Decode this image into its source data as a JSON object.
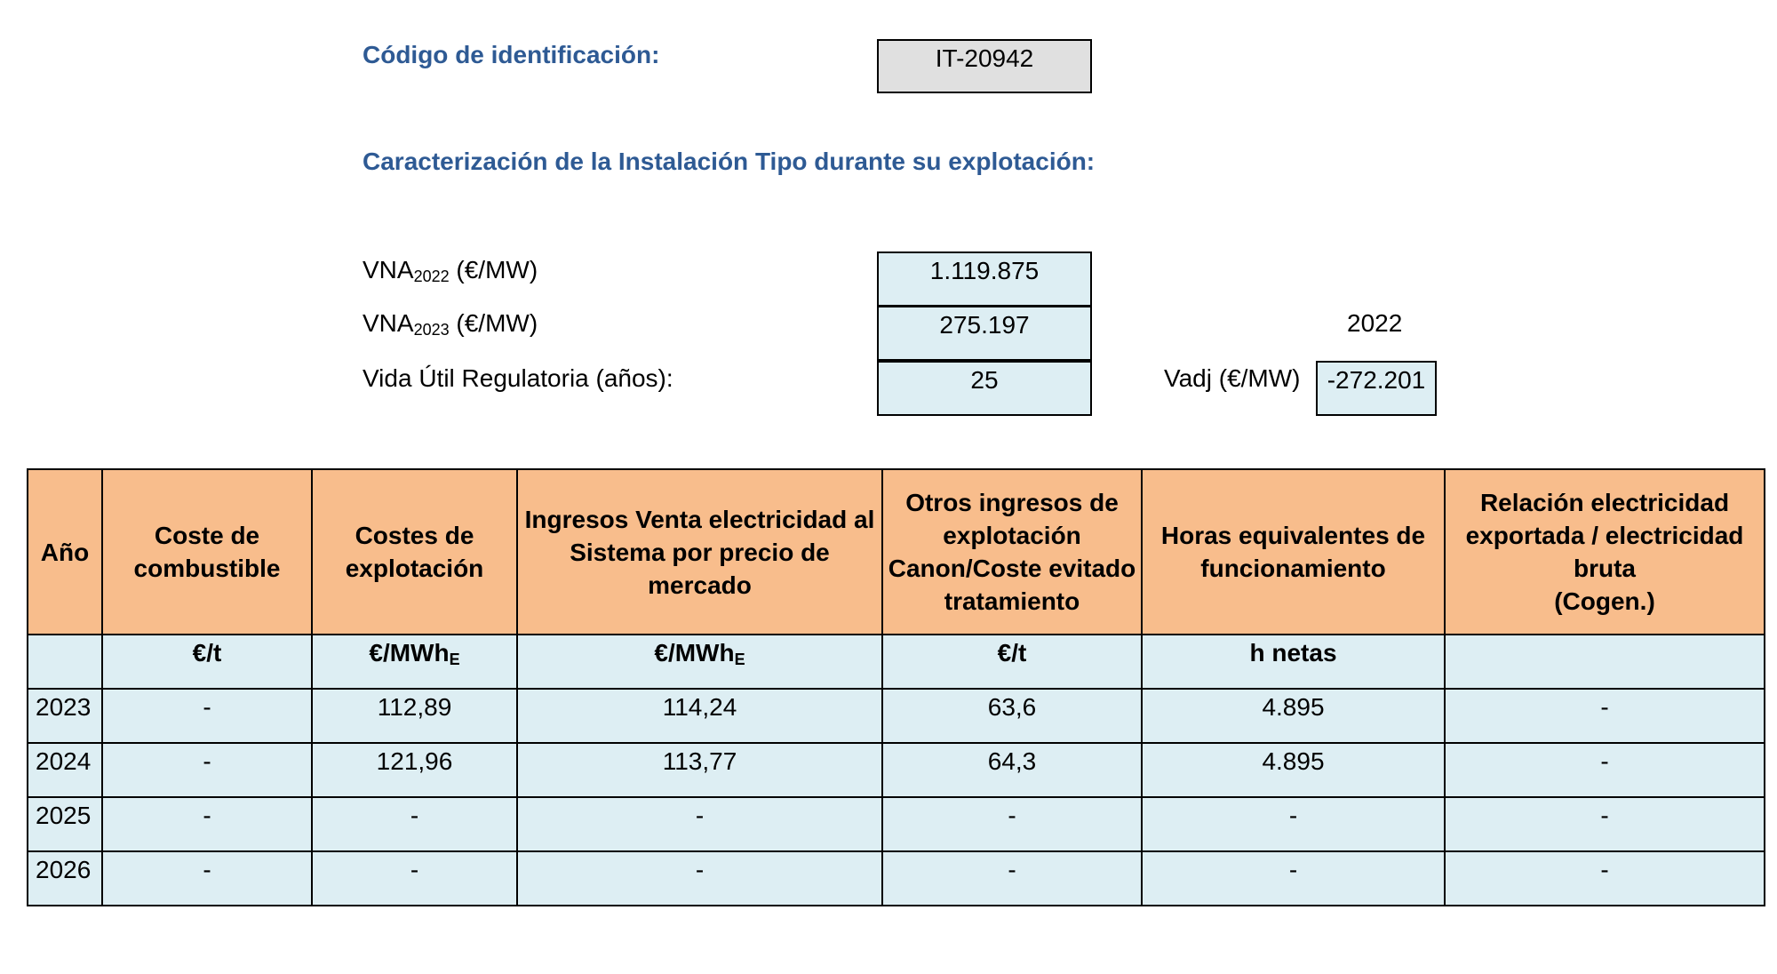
{
  "header": {
    "id_label": "Código de identificación:",
    "id_value": "IT-20942",
    "section_title": "Caracterización de la Instalación Tipo durante su explotación:"
  },
  "params": {
    "vna1_prefix": "VNA",
    "vna1_sub": "2022",
    "vna1_unit": " (€/MW)",
    "vna1_value": "1.119.875",
    "vna2_prefix": "VNA",
    "vna2_sub": "2023",
    "vna2_unit": " (€/MW)",
    "vna2_value": "275.197",
    "vida_label": "Vida Útil Regulatoria (años):",
    "vida_value": "25",
    "year_label": "2022",
    "vadj_label": "Vadj (€/MW)",
    "vadj_value": "-272.201"
  },
  "table": {
    "headers": [
      "Año",
      "Coste de combustible",
      "Costes de explotación",
      "Ingresos Venta electricidad al Sistema por precio de mercado",
      "Otros ingresos de explotación Canon/Coste evitado tratamiento",
      "Horas equivalentes de funcionamiento",
      "Relación electricidad exportada / electricidad bruta\n(Cogen.)"
    ],
    "units": [
      {
        "main": "",
        "sub": ""
      },
      {
        "main": "€/t",
        "sub": ""
      },
      {
        "main": "€/MWh",
        "sub": "E"
      },
      {
        "main": "€/MWh",
        "sub": "E"
      },
      {
        "main": "€/t",
        "sub": ""
      },
      {
        "main": "h netas",
        "sub": ""
      },
      {
        "main": "",
        "sub": ""
      }
    ],
    "rows": [
      [
        "2023",
        "-",
        "112,89",
        "114,24",
        "63,6",
        "4.895",
        "-"
      ],
      [
        "2024",
        "-",
        "121,96",
        "113,77",
        "64,3",
        "4.895",
        "-"
      ],
      [
        "2025",
        "-",
        "-",
        "-",
        "-",
        "-",
        "-"
      ],
      [
        "2026",
        "-",
        "-",
        "-",
        "-",
        "-",
        "-"
      ]
    ]
  },
  "colors": {
    "heading": "#2e5a94",
    "header_fill": "#f8bd8c",
    "cell_fill": "#ddeef3",
    "id_fill": "#e0e0e0"
  }
}
